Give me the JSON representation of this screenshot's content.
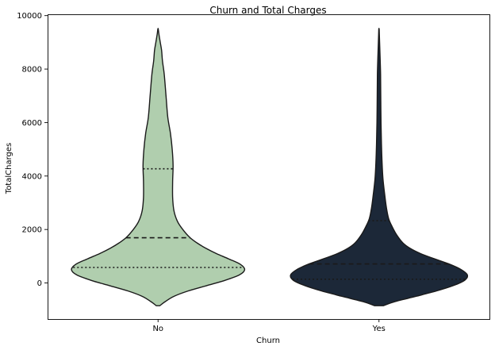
{
  "chart_data": {
    "type": "violin",
    "title": "Churn and Total Charges",
    "xlabel": "Churn",
    "ylabel": "TotalCharges",
    "categories": [
      "No",
      "Yes"
    ],
    "ylim": [
      -1350,
      10050
    ],
    "yticks": [
      0,
      2000,
      4000,
      6000,
      8000,
      10000
    ],
    "grid": false,
    "violins": [
      {
        "category": "No",
        "color": "#b0ceae",
        "quartiles": {
          "q1": 580,
          "median": 1690,
          "q3": 4270
        },
        "range": [
          -850,
          9500
        ],
        "density": [
          [
            -850,
            0.02
          ],
          [
            -700,
            0.08
          ],
          [
            -500,
            0.18
          ],
          [
            -300,
            0.34
          ],
          [
            -100,
            0.55
          ],
          [
            100,
            0.76
          ],
          [
            300,
            0.92
          ],
          [
            500,
            0.98
          ],
          [
            700,
            0.93
          ],
          [
            900,
            0.8
          ],
          [
            1100,
            0.66
          ],
          [
            1300,
            0.54
          ],
          [
            1500,
            0.44
          ],
          [
            1700,
            0.36
          ],
          [
            2000,
            0.28
          ],
          [
            2300,
            0.22
          ],
          [
            2700,
            0.18
          ],
          [
            3200,
            0.165
          ],
          [
            3800,
            0.165
          ],
          [
            4400,
            0.17
          ],
          [
            5000,
            0.16
          ],
          [
            5600,
            0.14
          ],
          [
            6200,
            0.11
          ],
          [
            7000,
            0.09
          ],
          [
            7800,
            0.07
          ],
          [
            8300,
            0.05
          ],
          [
            8700,
            0.04
          ],
          [
            9000,
            0.025
          ],
          [
            9300,
            0.01
          ],
          [
            9500,
            0.002
          ]
        ]
      },
      {
        "category": "Yes",
        "color": "#1c2838",
        "quartiles": {
          "q1": 140,
          "median": 710,
          "q3": 2330
        },
        "range": [
          -850,
          9500
        ],
        "density": [
          [
            -850,
            0.05
          ],
          [
            -700,
            0.18
          ],
          [
            -500,
            0.42
          ],
          [
            -300,
            0.65
          ],
          [
            -100,
            0.84
          ],
          [
            100,
            0.97
          ],
          [
            300,
            1.0
          ],
          [
            500,
            0.93
          ],
          [
            700,
            0.8
          ],
          [
            900,
            0.63
          ],
          [
            1100,
            0.47
          ],
          [
            1300,
            0.35
          ],
          [
            1500,
            0.27
          ],
          [
            1800,
            0.2
          ],
          [
            2100,
            0.15
          ],
          [
            2400,
            0.11
          ],
          [
            2800,
            0.085
          ],
          [
            3300,
            0.065
          ],
          [
            3900,
            0.045
          ],
          [
            4500,
            0.035
          ],
          [
            5200,
            0.028
          ],
          [
            6000,
            0.023
          ],
          [
            7000,
            0.02
          ],
          [
            7800,
            0.018
          ],
          [
            8500,
            0.012
          ],
          [
            9000,
            0.007
          ],
          [
            9300,
            0.004
          ],
          [
            9500,
            0.002
          ]
        ]
      }
    ]
  }
}
